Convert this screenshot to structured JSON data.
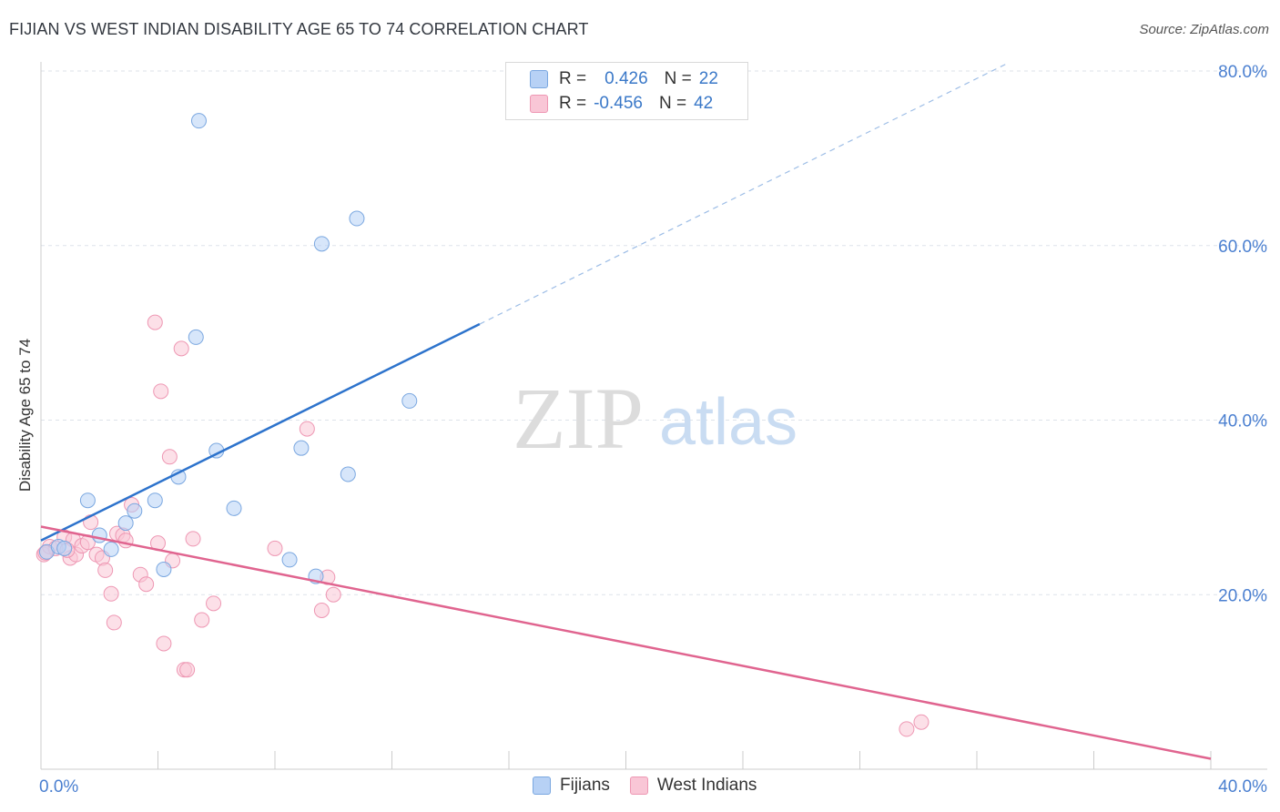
{
  "header": {
    "title": "FIJIAN VS WEST INDIAN DISABILITY AGE 65 TO 74 CORRELATION CHART",
    "source": "Source: ZipAtlas.com"
  },
  "watermark": {
    "zip": "ZIP",
    "atlas": "atlas"
  },
  "colors": {
    "fijian_fill": "#b7d1f5",
    "fijian_stroke": "#7aa7e0",
    "fijian_line": "#2d73cc",
    "westindian_fill": "#f9c6d6",
    "westindian_stroke": "#ee97b3",
    "westindian_line": "#e0648f",
    "tick_label": "#4a7fd0",
    "grid": "#dde2ea"
  },
  "legend": {
    "rows": [
      {
        "r_label": "R =",
        "r_value": "0.426",
        "n_label": "N =",
        "n_value": "22"
      },
      {
        "r_label": "R =",
        "r_value": "-0.456",
        "n_label": "N =",
        "n_value": "42"
      }
    ]
  },
  "bottom_legend": {
    "fijians": "Fijians",
    "west_indians": "West Indians"
  },
  "chart_data": {
    "type": "scatter",
    "title": "FIJIAN VS WEST INDIAN DISABILITY AGE 65 TO 74 CORRELATION CHART",
    "xlabel": "",
    "ylabel": "Disability Age 65 to 74",
    "xlim": [
      0,
      40
    ],
    "ylim": [
      0,
      80
    ],
    "x_tick_labels": [
      "0.0%",
      "40.0%"
    ],
    "y_ticks": [
      20,
      40,
      60,
      80
    ],
    "y_tick_labels": [
      "20.0%",
      "40.0%",
      "60.0%",
      "80.0%"
    ],
    "grid": true,
    "series": [
      {
        "name": "Fijians",
        "r": 0.426,
        "n": 22,
        "points": [
          [
            0.2,
            24.9
          ],
          [
            0.6,
            25.5
          ],
          [
            0.8,
            25.3
          ],
          [
            1.6,
            30.8
          ],
          [
            2.0,
            26.8
          ],
          [
            2.4,
            25.2
          ],
          [
            2.9,
            28.2
          ],
          [
            3.2,
            29.6
          ],
          [
            3.9,
            30.8
          ],
          [
            4.2,
            22.9
          ],
          [
            4.7,
            33.5
          ],
          [
            5.3,
            49.5
          ],
          [
            5.4,
            74.3
          ],
          [
            6.0,
            36.5
          ],
          [
            6.6,
            29.9
          ],
          [
            8.5,
            24.0
          ],
          [
            8.9,
            36.8
          ],
          [
            9.4,
            22.1
          ],
          [
            9.6,
            60.2
          ],
          [
            10.5,
            33.8
          ],
          [
            10.8,
            63.1
          ],
          [
            12.6,
            42.2
          ]
        ],
        "trend": {
          "x0": 0,
          "y0": 26.2,
          "x1": 15.0,
          "y1": 51.0,
          "dash_to_x": 33.0,
          "dash_to_y": 80.8
        }
      },
      {
        "name": "West Indians",
        "r": -0.456,
        "n": 42,
        "points": [
          [
            0.1,
            24.6
          ],
          [
            0.3,
            25.5
          ],
          [
            0.5,
            25.3
          ],
          [
            0.8,
            26.6
          ],
          [
            1.0,
            24.2
          ],
          [
            1.1,
            26.3
          ],
          [
            1.2,
            24.6
          ],
          [
            1.4,
            25.6
          ],
          [
            1.6,
            26.0
          ],
          [
            1.7,
            28.3
          ],
          [
            1.9,
            24.6
          ],
          [
            2.1,
            24.2
          ],
          [
            2.2,
            22.8
          ],
          [
            2.4,
            20.1
          ],
          [
            2.5,
            16.8
          ],
          [
            2.6,
            27.0
          ],
          [
            2.8,
            26.8
          ],
          [
            2.9,
            26.2
          ],
          [
            3.1,
            30.3
          ],
          [
            3.4,
            22.3
          ],
          [
            3.6,
            21.2
          ],
          [
            3.9,
            51.2
          ],
          [
            4.0,
            25.9
          ],
          [
            4.1,
            43.3
          ],
          [
            4.2,
            14.4
          ],
          [
            4.4,
            35.8
          ],
          [
            4.5,
            23.9
          ],
          [
            4.8,
            48.2
          ],
          [
            4.9,
            11.4
          ],
          [
            5.0,
            11.4
          ],
          [
            5.2,
            26.4
          ],
          [
            5.5,
            17.1
          ],
          [
            5.9,
            19.0
          ],
          [
            8.0,
            25.3
          ],
          [
            9.1,
            39.0
          ],
          [
            9.6,
            18.2
          ],
          [
            9.8,
            22.0
          ],
          [
            10.0,
            20.0
          ],
          [
            29.6,
            4.6
          ],
          [
            30.1,
            5.4
          ],
          [
            0.15,
            24.8
          ],
          [
            0.9,
            25.1
          ]
        ],
        "trend": {
          "x0": 0,
          "y0": 27.8,
          "x1": 40.0,
          "y1": 1.2
        }
      }
    ]
  }
}
